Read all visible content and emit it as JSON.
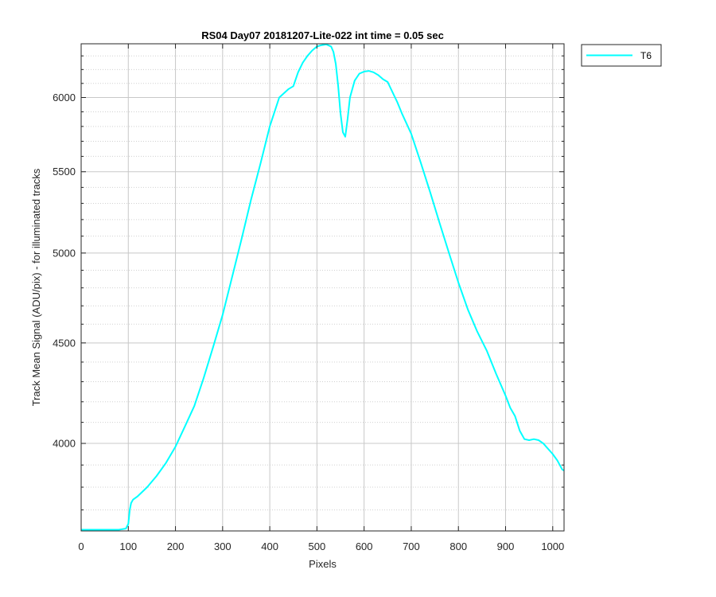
{
  "chart_data": {
    "type": "line",
    "title": "RS04 Day07 20181207-Lite-022 int time = 0.05 sec",
    "xlabel": "Pixels",
    "ylabel": "Track Mean Signal (ADU/pix) - for illuminated tracks",
    "xlim": [
      0,
      1024
    ],
    "ylim": [
      3610,
      6390
    ],
    "yscale": "log",
    "grid": true,
    "minor_grid": true,
    "legend_position": "top-right outside",
    "x_ticks": [
      0,
      100,
      200,
      300,
      400,
      500,
      600,
      700,
      800,
      900,
      1000
    ],
    "y_ticks": [
      4000,
      4500,
      5000,
      5500,
      6000
    ],
    "y_minor_ticks": [
      3700,
      3800,
      3900,
      4100,
      4200,
      4300,
      4400,
      4600,
      4700,
      4800,
      4900,
      5100,
      5200,
      5300,
      5400,
      5600,
      5700,
      5800,
      5900,
      6100,
      6200,
      6300
    ],
    "series": [
      {
        "name": "T6",
        "color": "#00ffff",
        "x": [
          0,
          20,
          40,
          60,
          80,
          95,
          100,
          103,
          106,
          110,
          120,
          140,
          160,
          180,
          200,
          220,
          240,
          260,
          280,
          300,
          320,
          340,
          360,
          380,
          400,
          420,
          440,
          450,
          460,
          470,
          480,
          490,
          500,
          510,
          520,
          530,
          535,
          540,
          545,
          550,
          555,
          560,
          565,
          570,
          580,
          590,
          600,
          610,
          620,
          630,
          640,
          650,
          660,
          670,
          680,
          700,
          720,
          740,
          760,
          780,
          800,
          820,
          840,
          860,
          880,
          900,
          910,
          920,
          930,
          940,
          950,
          960,
          970,
          980,
          1000,
          1010,
          1020,
          1024
        ],
        "y": [
          3615,
          3615,
          3615,
          3615,
          3615,
          3620,
          3640,
          3700,
          3730,
          3745,
          3760,
          3800,
          3850,
          3910,
          3985,
          4080,
          4180,
          4320,
          4480,
          4650,
          4860,
          5080,
          5320,
          5550,
          5800,
          6000,
          6060,
          6080,
          6180,
          6250,
          6300,
          6340,
          6370,
          6380,
          6385,
          6370,
          6330,
          6240,
          6080,
          5890,
          5760,
          5730,
          5850,
          6000,
          6120,
          6170,
          6185,
          6190,
          6180,
          6160,
          6130,
          6110,
          6040,
          5970,
          5890,
          5750,
          5560,
          5370,
          5180,
          5000,
          4830,
          4680,
          4560,
          4460,
          4340,
          4230,
          4170,
          4130,
          4060,
          4020,
          4015,
          4020,
          4015,
          4000,
          3950,
          3920,
          3880,
          3875
        ]
      }
    ]
  }
}
